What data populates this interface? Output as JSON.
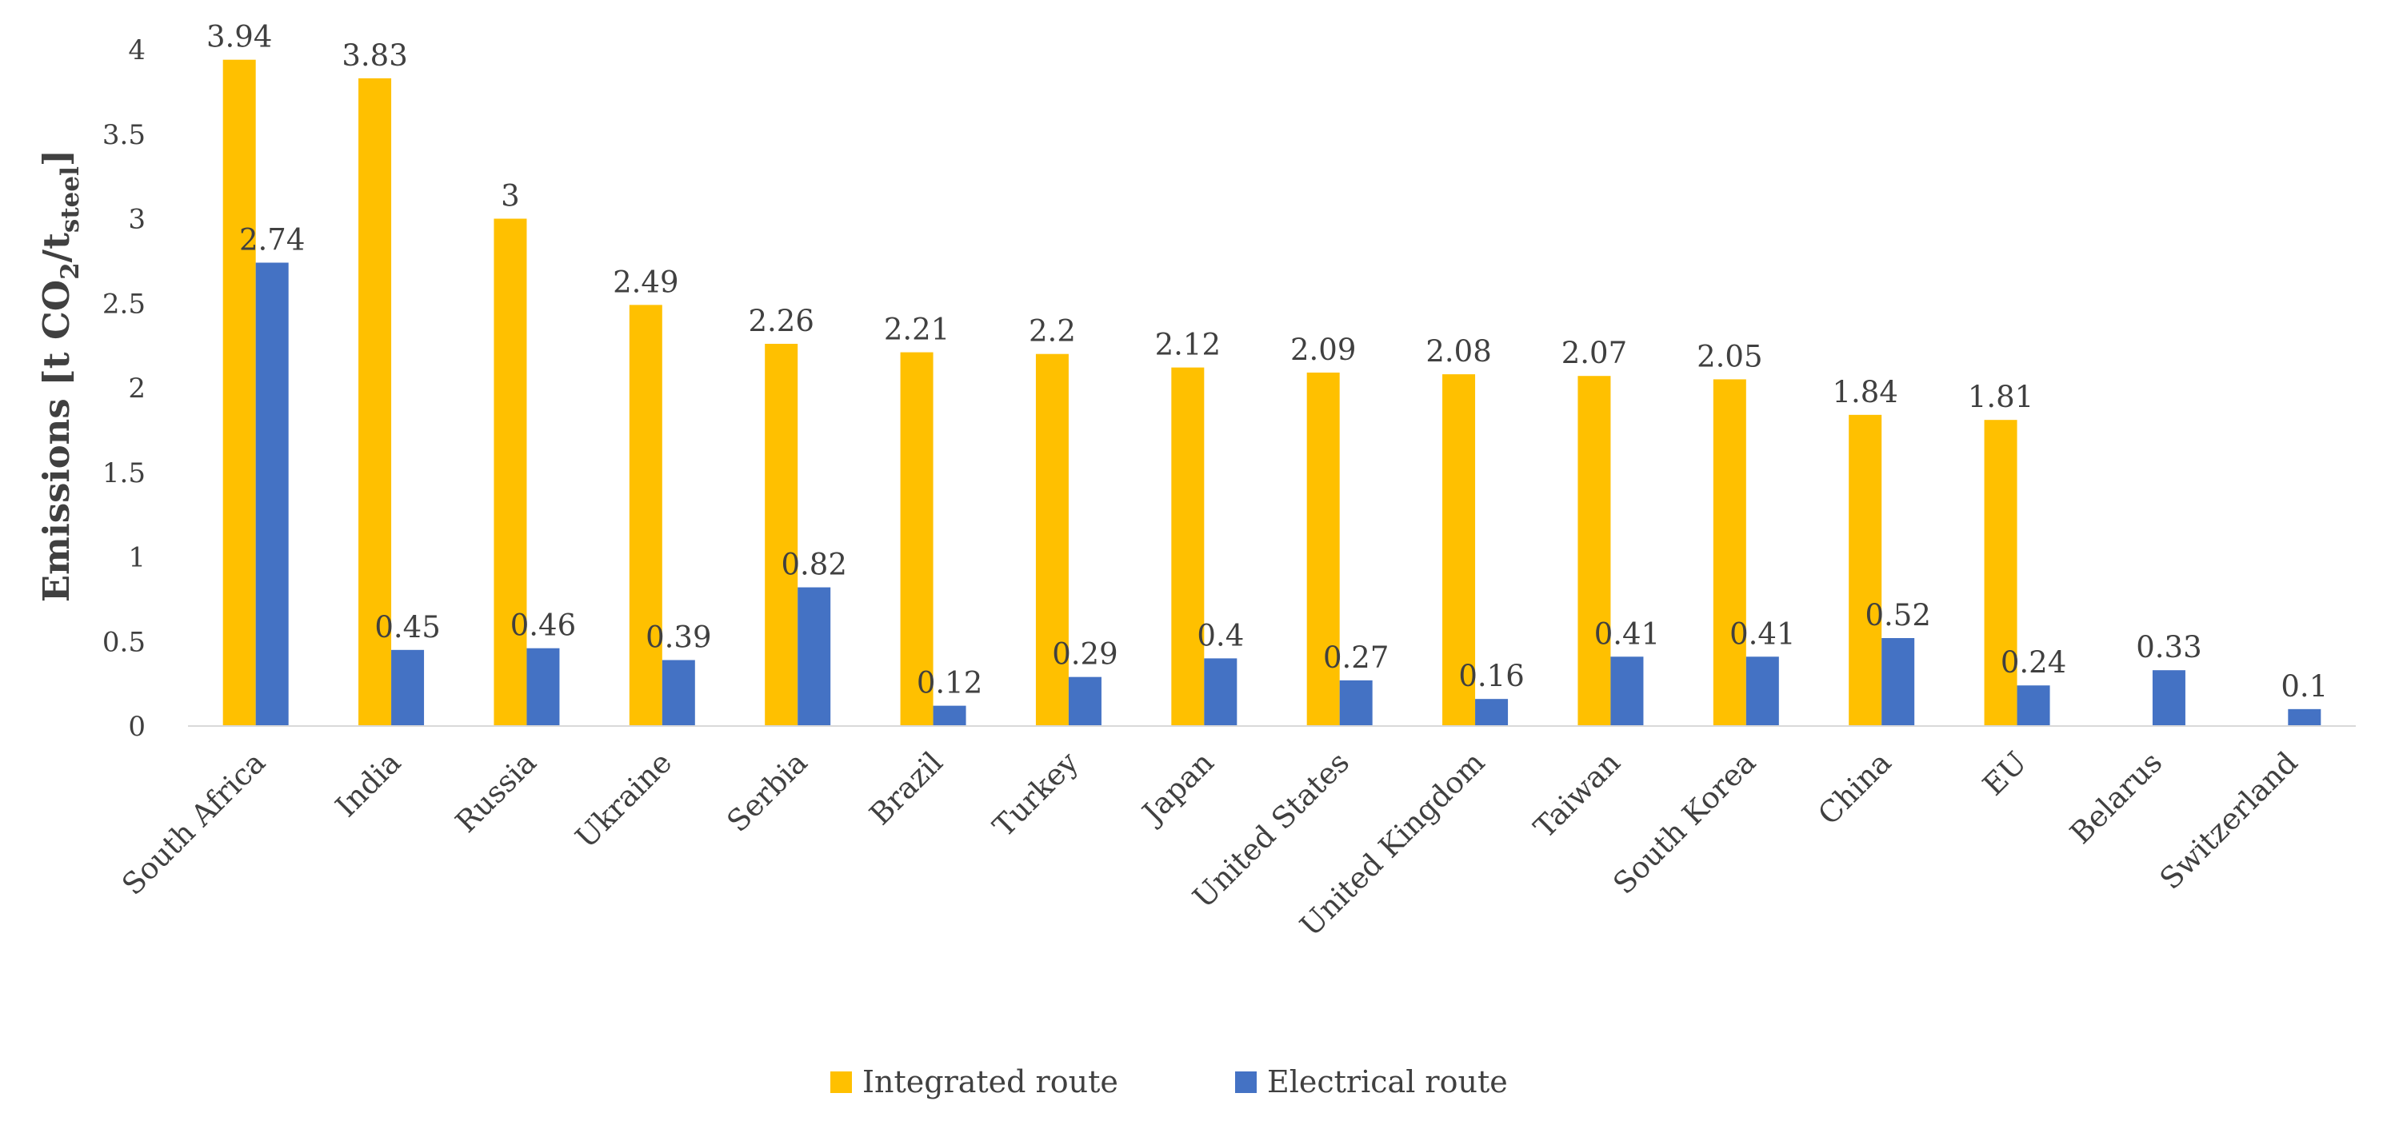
{
  "chart_data": {
    "type": "bar",
    "categories": [
      "South Africa",
      "India",
      "Russia",
      "Ukraine",
      "Serbia",
      "Brazil",
      "Turkey",
      "Japan",
      "United States",
      "United Kingdom",
      "Taiwan",
      "South Korea",
      "China",
      "EU",
      "Belarus",
      "Switzerland"
    ],
    "series": [
      {
        "name": "Integrated route",
        "color": "#FFC000",
        "values": [
          3.94,
          3.83,
          3,
          2.49,
          2.26,
          2.21,
          2.2,
          2.12,
          2.09,
          2.08,
          2.07,
          2.05,
          1.84,
          1.81,
          null,
          null
        ],
        "labels": [
          "3.94",
          "3.83",
          "3",
          "2.49",
          "2.26",
          "2.21",
          "2.2",
          "2.12",
          "2.09",
          "2.08",
          "2.07",
          "2.05",
          "1.84",
          "1.81",
          null,
          null
        ]
      },
      {
        "name": "Electrical route",
        "color": "#4472C4",
        "values": [
          2.74,
          0.45,
          0.46,
          0.39,
          0.82,
          0.12,
          0.29,
          0.4,
          0.27,
          0.16,
          0.41,
          0.41,
          0.52,
          0.24,
          0.33,
          0.1
        ],
        "labels": [
          "2.74",
          "0.45",
          "0.46",
          "0.39",
          "0.82",
          "0.12",
          "0.29",
          "0.4",
          "0.27",
          "0.16",
          "0.41",
          "0.41",
          "0.52",
          "0.24",
          "0.33",
          "0.1"
        ]
      }
    ],
    "title": "",
    "xlabel": "",
    "ylabel": {
      "main": "Emissions [t CO",
      "sub1": "2",
      "mid": "/t",
      "sub2": "steel",
      "end": "]"
    },
    "ylim": [
      0,
      4
    ],
    "yticks": [
      0,
      0.5,
      1,
      1.5,
      2,
      2.5,
      3,
      3.5,
      4
    ],
    "ytick_labels": [
      "0",
      "0.5",
      "1",
      "1.5",
      "2",
      "2.5",
      "3",
      "3.5",
      "4"
    ],
    "grid": false,
    "legend_position": "bottom-center",
    "axis_color": "#D9D9D9"
  }
}
